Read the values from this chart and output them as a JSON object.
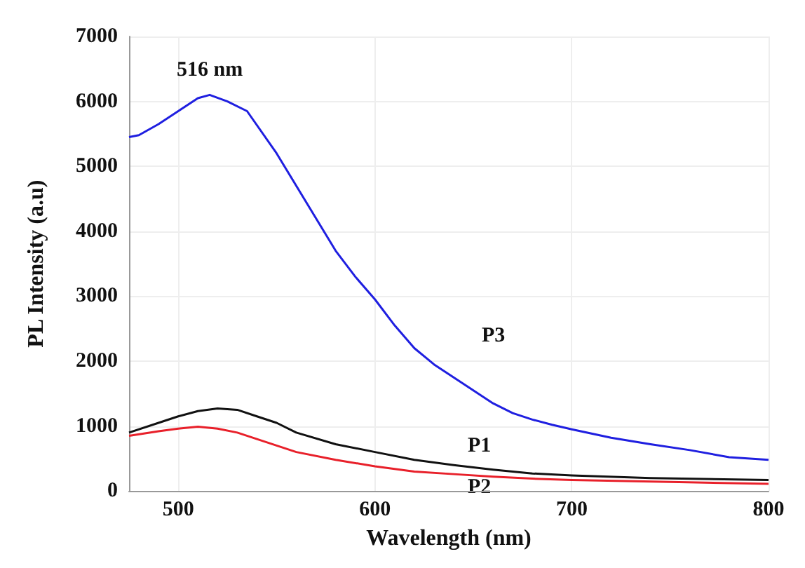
{
  "chart_data": {
    "type": "line",
    "xlabel": "Wavelength (nm)",
    "ylabel": "PL Intensity (a.u)",
    "xlim": [
      475,
      800
    ],
    "xticks": [
      500,
      600,
      700,
      800
    ],
    "ylim": [
      0,
      7000
    ],
    "yticks": [
      0,
      1000,
      2000,
      3000,
      4000,
      5000,
      6000,
      7000
    ],
    "grid": true,
    "line_style": "solid",
    "marker": "none",
    "series": [
      {
        "name": "P3",
        "color": "#1f1fe0",
        "x": [
          475,
          480,
          490,
          500,
          510,
          516,
          525,
          535,
          550,
          560,
          570,
          580,
          590,
          600,
          610,
          620,
          630,
          640,
          650,
          660,
          670,
          680,
          690,
          700,
          720,
          740,
          760,
          780,
          800
        ],
        "values": [
          5450,
          5480,
          5650,
          5850,
          6050,
          6100,
          6000,
          5850,
          5200,
          4700,
          4200,
          3700,
          3300,
          2950,
          2550,
          2200,
          1950,
          1750,
          1550,
          1350,
          1200,
          1100,
          1020,
          950,
          820,
          720,
          630,
          520,
          480
        ]
      },
      {
        "name": "P1",
        "color": "#111111",
        "x": [
          475,
          490,
          500,
          510,
          520,
          530,
          540,
          550,
          560,
          580,
          600,
          620,
          640,
          660,
          680,
          700,
          740,
          800
        ],
        "values": [
          900,
          1050,
          1150,
          1230,
          1270,
          1250,
          1150,
          1050,
          900,
          720,
          600,
          480,
          400,
          330,
          270,
          240,
          200,
          170
        ]
      },
      {
        "name": "P2",
        "color": "#e8202a",
        "x": [
          475,
          490,
          500,
          510,
          520,
          530,
          540,
          550,
          560,
          580,
          600,
          620,
          640,
          660,
          680,
          700,
          750,
          800
        ],
        "values": [
          850,
          920,
          960,
          990,
          960,
          900,
          800,
          700,
          600,
          480,
          380,
          300,
          260,
          220,
          190,
          170,
          140,
          110
        ]
      }
    ],
    "annotations": [
      {
        "text": "516 nm",
        "x": 516,
        "y": 6100
      }
    ]
  }
}
